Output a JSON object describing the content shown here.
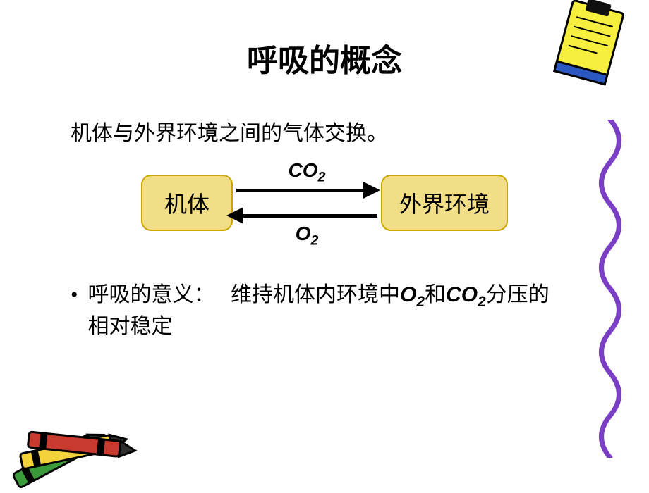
{
  "title": "呼吸的概念",
  "intro": "机体与外界环境之间的气体交换。",
  "diagram": {
    "left_box": {
      "label": "机体",
      "fill": "#f2de86",
      "border": "#c9a500"
    },
    "right_box": {
      "label": "外界环境",
      "fill": "#f2de86",
      "border": "#c9a500"
    },
    "top_arrow_label_html": "CO<span class=\"sub\">2</span>",
    "bottom_arrow_label_html": "O<span class=\"sub\">2</span>",
    "arrow_color": "#000000"
  },
  "bullet": {
    "label": "呼吸的意义：",
    "text_html": "维持机体内环境中<span class=\"chem\">O<span class=\"sub\">2</span></span>和<span class=\"chem\">CO<span class=\"sub\">2</span></span>分压的相对稳定"
  },
  "decor": {
    "clip_colors": {
      "board": "#f6ef3e",
      "clip": "#101010",
      "band": "#2a58c0"
    },
    "squiggle_color": "#7a3fc4",
    "crayons": [
      {
        "body": "#c93a2e",
        "tip": "#2e2e2e"
      },
      {
        "body": "#f3d23a",
        "tip": "#2e2e2e"
      },
      {
        "body": "#3a9a3a",
        "tip": "#2e2e2e"
      }
    ]
  },
  "background": "#ffffff"
}
